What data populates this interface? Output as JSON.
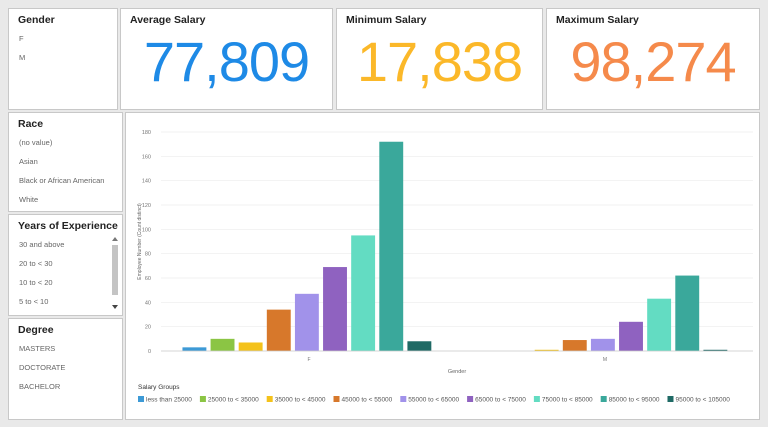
{
  "filters": [
    {
      "title": "Gender",
      "items": [
        "F",
        "M"
      ]
    },
    {
      "title": "Race",
      "items": [
        "(no value)",
        "Asian",
        "Black or African American",
        "White"
      ]
    },
    {
      "title": "Years of Experience",
      "items": [
        "30 and above",
        "20 to < 30",
        "10 to < 20",
        "5 to < 10"
      ]
    },
    {
      "title": "Degree",
      "items": [
        "MASTERS",
        "DOCTORATE",
        "BACHELOR"
      ]
    }
  ],
  "kpis": [
    {
      "title": "Average Salary",
      "value": "77,809",
      "color": "#1e8ae6"
    },
    {
      "title": "Minimum Salary",
      "value": "17,838",
      "color": "#fbb829"
    },
    {
      "title": "Maximum Salary",
      "value": "98,274",
      "color": "#f58a4b"
    }
  ],
  "chart_data": {
    "type": "bar",
    "x_label": "Gender",
    "y_label": "Employee Number (Count distinct)",
    "legend_title": "Salary Groups",
    "categories": [
      "F",
      "M"
    ],
    "series": [
      {
        "name": "less than 25000",
        "color": "#3d9ad6",
        "values": [
          3,
          null
        ]
      },
      {
        "name": "25000 to < 35000",
        "color": "#8bc544",
        "values": [
          10,
          null
        ]
      },
      {
        "name": "35000 to < 45000",
        "color": "#f4c21b",
        "values": [
          7,
          1
        ]
      },
      {
        "name": "45000 to < 55000",
        "color": "#d7782b",
        "values": [
          34,
          9
        ]
      },
      {
        "name": "55000 to < 65000",
        "color": "#a192ea",
        "values": [
          47,
          10
        ]
      },
      {
        "name": "65000 to < 75000",
        "color": "#8f62c0",
        "values": [
          69,
          24
        ]
      },
      {
        "name": "75000 to < 85000",
        "color": "#63dcc2",
        "values": [
          95,
          43
        ]
      },
      {
        "name": "85000 to < 95000",
        "color": "#3aa89b",
        "values": [
          172,
          62
        ]
      },
      {
        "name": "95000 to < 105000",
        "color": "#1f6a65",
        "values": [
          8,
          1
        ]
      }
    ],
    "ylim": [
      0,
      180
    ],
    "yticks": [
      0,
      20,
      40,
      60,
      80,
      100,
      120,
      140,
      160,
      180
    ],
    "grid": true
  }
}
